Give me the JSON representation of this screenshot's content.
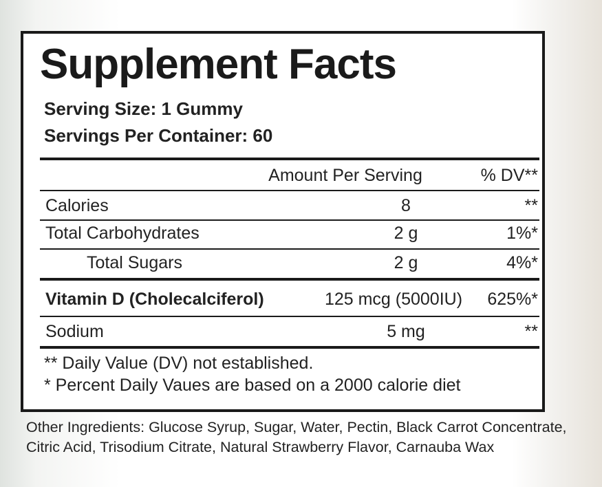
{
  "header": {
    "title": "Supplement Facts",
    "serving_size": "Serving Size: 1 Gummy",
    "servings_per_container": "Servings Per Container: 60"
  },
  "table": {
    "columns": [
      "Amount Per Serving",
      "% DV**"
    ],
    "rows": [
      [
        "Calories",
        "8",
        "**"
      ],
      [
        "Total Carbohydrates",
        "2 g",
        "1%*"
      ],
      [
        "Total Sugars",
        "2 g",
        "4%*"
      ],
      [
        "Vitamin D (Cholecalciferol)",
        "125 mcg (5000IU)",
        "625%*"
      ],
      [
        "Sodium",
        "5 mg",
        "**"
      ]
    ]
  },
  "footnotes": [
    "** Daily Value (DV) not established.",
    "* Percent Daily Vaues are based on a 2000 calorie diet"
  ],
  "other_ingredients": "Other Ingredients: Glucose Syrup, Sugar, Water, Pectin, Black Carrot Concentrate, Citric Acid, Trisodium Citrate, Natural Strawberry Flavor, Carnauba Wax"
}
